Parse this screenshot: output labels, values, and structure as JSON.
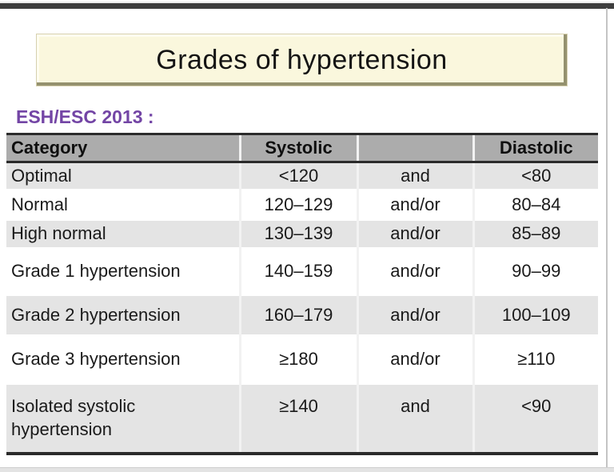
{
  "slide": {
    "title": "Grades of hypertension",
    "subtitle": "ESH/ESC 2013 :"
  },
  "table": {
    "columns": [
      "Category",
      "Systolic",
      "",
      "Diastolic"
    ],
    "rows": [
      {
        "category": "Optimal",
        "systolic": "<120",
        "connector": "and",
        "diastolic": "<80"
      },
      {
        "category": "Normal",
        "systolic": "120–129",
        "connector": "and/or",
        "diastolic": "80–84"
      },
      {
        "category": "High normal",
        "systolic": "130–139",
        "connector": "and/or",
        "diastolic": "85–89"
      },
      {
        "category": "Grade 1 hypertension",
        "systolic": "140–159",
        "connector": "and/or",
        "diastolic": "90–99"
      },
      {
        "category": "Grade 2 hypertension",
        "systolic": "160–179",
        "connector": "and/or",
        "diastolic": "100–109"
      },
      {
        "category": "Grade 3 hypertension",
        "systolic": "≥180",
        "connector": "and/or",
        "diastolic": "≥110"
      },
      {
        "category": "Isolated systolic hypertension",
        "systolic": "≥140",
        "connector": "and",
        "diastolic": "<90"
      }
    ]
  },
  "colors": {
    "subtitle_purple": "#7345A5",
    "title_box_bg": "#FAF7DD",
    "title_box_bevel": "#94916E",
    "header_gray": "#ACACAC",
    "row_stripe_gray": "#E4E4E4",
    "table_border_dark": "#2B2B2B",
    "top_bar": "#3E3E3E"
  }
}
